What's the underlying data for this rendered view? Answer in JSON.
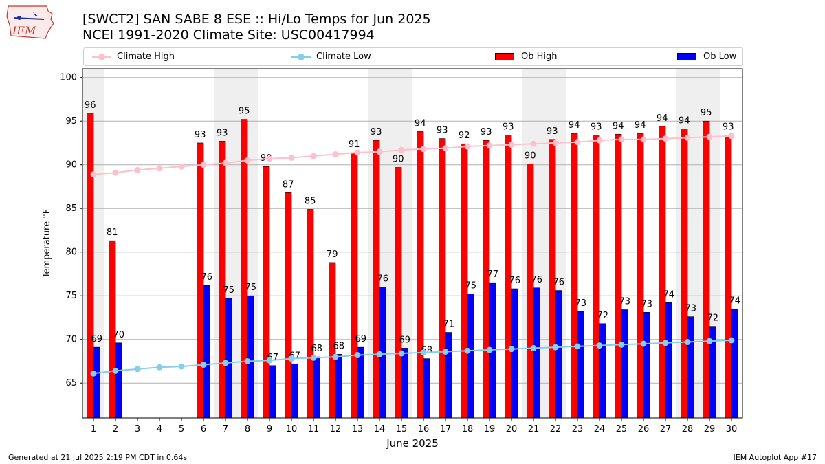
{
  "logo": {
    "text": "IEM"
  },
  "title_line1": "[SWCT2] SAN SABE 8 ESE :: Hi/Lo Temps for Jun 2025",
  "title_line2": "NCEI 1991-2020 Climate Site: USC00417994",
  "footer_left": "Generated at 21 Jul 2025 2:19 PM CDT in 0.64s",
  "footer_right": "IEM Autoplot App #17",
  "colors": {
    "ob_high": "#ff0000",
    "ob_low": "#0000ff",
    "climate_high": "#ffc0cb",
    "climate_low": "#87ceeb",
    "weekend_band": "#efefef"
  },
  "chart_data": {
    "type": "bar",
    "xlabel": "June 2025",
    "ylabel": "Temperature °F",
    "ylim": [
      61,
      101
    ],
    "yticks": [
      65,
      70,
      75,
      80,
      85,
      90,
      95,
      100
    ],
    "grid": true,
    "legend_position": "top",
    "categories": [
      1,
      2,
      3,
      4,
      5,
      6,
      7,
      8,
      9,
      10,
      11,
      12,
      13,
      14,
      15,
      16,
      17,
      18,
      19,
      20,
      21,
      22,
      23,
      24,
      25,
      26,
      27,
      28,
      29,
      30
    ],
    "shaded_days": [
      1,
      7,
      8,
      14,
      15,
      21,
      22,
      28,
      29
    ],
    "series": [
      {
        "name": "Climate High",
        "kind": "line",
        "values": [
          88.9,
          89.1,
          89.4,
          89.6,
          89.8,
          90.0,
          90.2,
          90.5,
          90.7,
          90.8,
          91.0,
          91.2,
          91.4,
          91.5,
          91.7,
          91.8,
          91.9,
          92.1,
          92.2,
          92.3,
          92.4,
          92.5,
          92.6,
          92.8,
          92.9,
          92.9,
          93.0,
          93.1,
          93.2,
          93.3
        ]
      },
      {
        "name": "Climate Low",
        "kind": "line",
        "values": [
          66.1,
          66.4,
          66.6,
          66.8,
          66.9,
          67.1,
          67.3,
          67.5,
          67.6,
          67.8,
          67.9,
          68.0,
          68.2,
          68.3,
          68.4,
          68.5,
          68.6,
          68.7,
          68.8,
          68.9,
          69.0,
          69.1,
          69.2,
          69.3,
          69.4,
          69.5,
          69.6,
          69.7,
          69.8,
          69.9
        ]
      },
      {
        "name": "Ob High",
        "kind": "bar",
        "values": [
          95.9,
          81.3,
          null,
          null,
          null,
          92.5,
          92.7,
          95.2,
          89.8,
          86.8,
          84.9,
          78.8,
          91.4,
          92.8,
          89.7,
          93.8,
          93.0,
          92.4,
          92.8,
          93.4,
          90.1,
          92.9,
          93.6,
          93.4,
          93.5,
          93.6,
          94.4,
          94.1,
          95.0,
          93.4
        ],
        "labels": [
          "96",
          "81",
          "",
          "",
          "",
          "93",
          "93",
          "95",
          "90",
          "87",
          "85",
          "79",
          "91",
          "93",
          "90",
          "94",
          "93",
          "92",
          "93",
          "93",
          "90",
          "93",
          "94",
          "93",
          "94",
          "94",
          "94",
          "94",
          "95",
          "93"
        ]
      },
      {
        "name": "Ob Low",
        "kind": "bar",
        "values": [
          69.1,
          69.6,
          null,
          null,
          null,
          76.2,
          74.7,
          75.0,
          67.0,
          67.2,
          68.0,
          68.3,
          69.1,
          76.0,
          69.0,
          67.8,
          70.8,
          75.2,
          76.5,
          75.8,
          75.9,
          75.6,
          73.2,
          71.8,
          73.4,
          73.1,
          74.2,
          72.6,
          71.5,
          73.5
        ],
        "labels": [
          "69",
          "70",
          "",
          "",
          "",
          "76",
          "75",
          "75",
          "67",
          "67",
          "68",
          "68",
          "69",
          "76",
          "69",
          "68",
          "71",
          "75",
          "77",
          "76",
          "76",
          "76",
          "73",
          "72",
          "73",
          "73",
          "74",
          "73",
          "72",
          "74"
        ]
      }
    ]
  }
}
